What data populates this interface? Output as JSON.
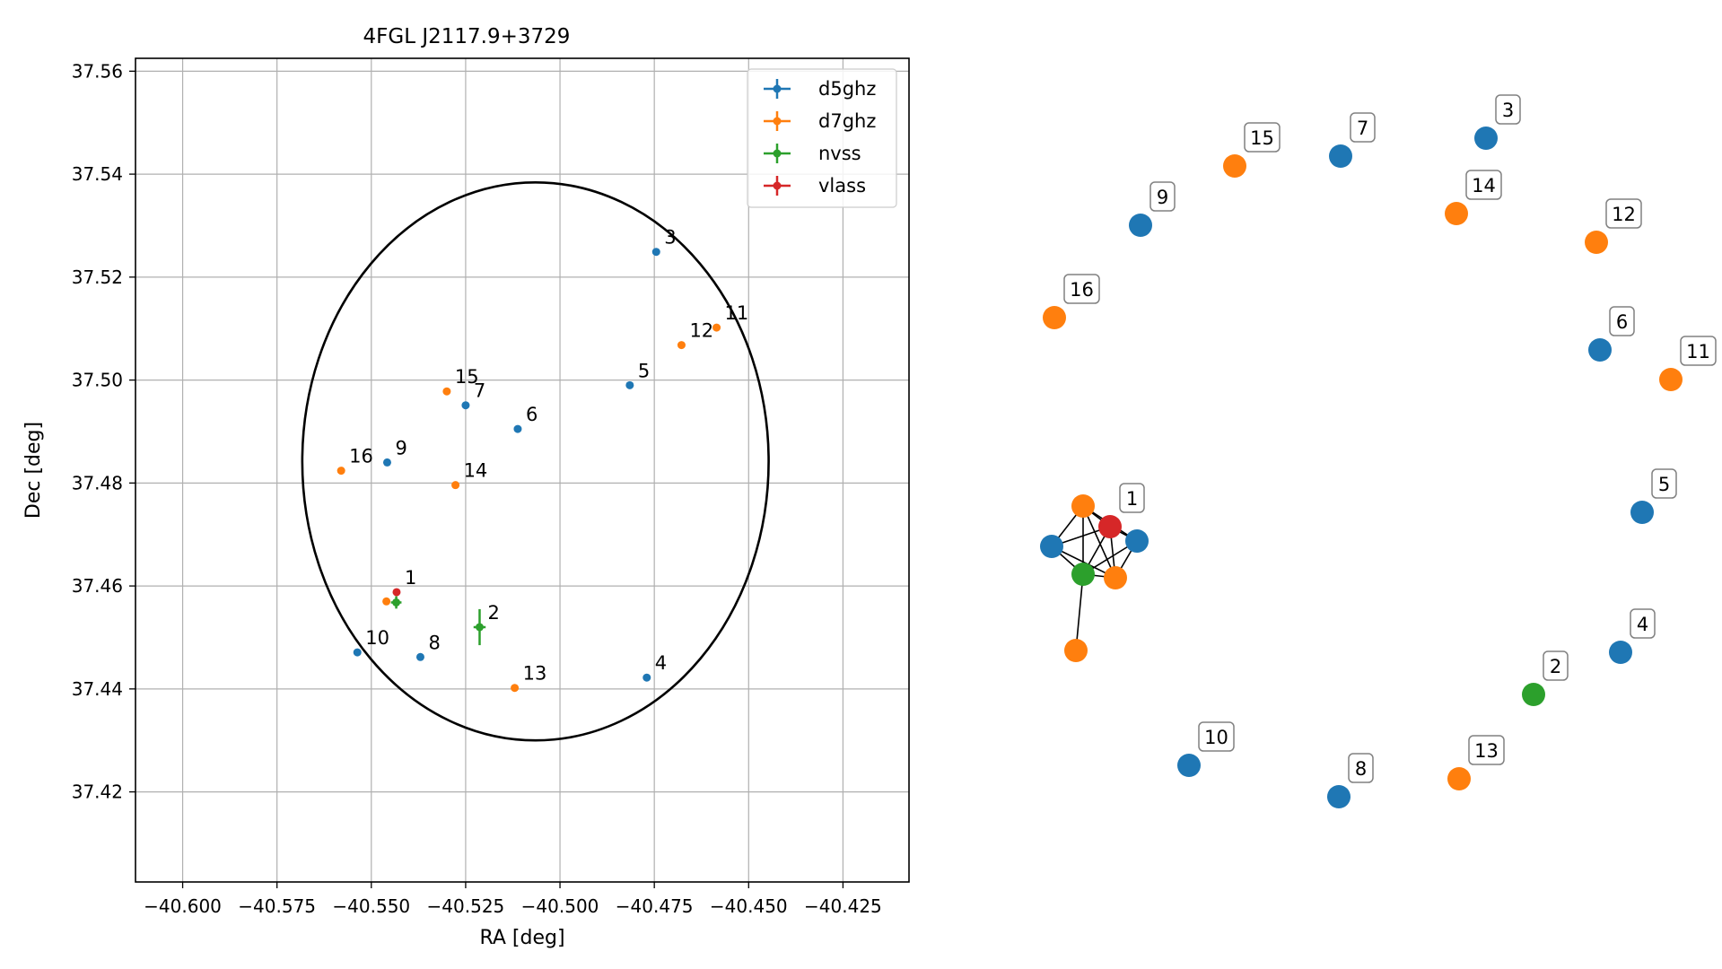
{
  "colors": {
    "d5ghz": "#1f77b4",
    "d7ghz": "#ff7f0e",
    "nvss": "#2ca02c",
    "vlass": "#d62728",
    "ellipse": "#000000",
    "grid": "#b0b0b0"
  },
  "chart_data": [
    {
      "type": "scatter",
      "title": "4FGL J2117.9+3729",
      "xlabel": "RA [deg]",
      "ylabel": "Dec [deg]",
      "xlim": [
        -40.6125,
        -40.4075
      ],
      "ylim": [
        37.4025,
        37.5625
      ],
      "xticks": [
        -40.6,
        -40.575,
        -40.55,
        -40.525,
        -40.5,
        -40.475,
        -40.45,
        -40.425
      ],
      "xtick_labels": [
        "−40.600",
        "−40.575",
        "−40.550",
        "−40.525",
        "−40.500",
        "−40.475",
        "−40.450",
        "−40.425"
      ],
      "yticks": [
        37.42,
        37.44,
        37.46,
        37.48,
        37.5,
        37.52,
        37.54,
        37.56
      ],
      "ytick_labels": [
        "37.42",
        "37.44",
        "37.46",
        "37.48",
        "37.50",
        "37.52",
        "37.54",
        "37.56"
      ],
      "grid": true,
      "legend_position": "top-right",
      "error_ellipse": {
        "center": [
          -40.5065,
          37.4842
        ],
        "semi_axis_ra": 0.0618,
        "semi_axis_dec": 0.0542
      },
      "series": [
        {
          "name": "d5ghz",
          "points": [
            {
              "id": "3",
              "x": -40.4745,
              "y": 37.5249
            },
            {
              "id": "5",
              "x": -40.4815,
              "y": 37.499
            },
            {
              "id": "6",
              "x": -40.5112,
              "y": 37.4905
            },
            {
              "id": "7",
              "x": -40.525,
              "y": 37.4951
            },
            {
              "id": "9",
              "x": -40.5458,
              "y": 37.484
            },
            {
              "id": "10",
              "x": -40.5537,
              "y": 37.4471
            },
            {
              "id": "8",
              "x": -40.537,
              "y": 37.4462
            },
            {
              "id": "4",
              "x": -40.477,
              "y": 37.4422
            }
          ]
        },
        {
          "name": "d7ghz",
          "points": [
            {
              "id": "11",
              "x": -40.4585,
              "y": 37.5102
            },
            {
              "id": "12",
              "x": -40.4678,
              "y": 37.5068
            },
            {
              "id": "15",
              "x": -40.53,
              "y": 37.4978
            },
            {
              "id": "16",
              "x": -40.558,
              "y": 37.4824
            },
            {
              "id": "14",
              "x": -40.5277,
              "y": 37.4796
            },
            {
              "id": "13",
              "x": -40.512,
              "y": 37.4402
            },
            {
              "id": "",
              "x": -40.546,
              "y": 37.457
            }
          ]
        },
        {
          "name": "nvss",
          "points": [
            {
              "id": "",
              "x": -40.5434,
              "y": 37.4568,
              "yerr": 0.0012,
              "xerr": 0.0014
            },
            {
              "id": "2",
              "x": -40.5213,
              "y": 37.452,
              "yerr": 0.0035,
              "xerr": 0.0016
            }
          ]
        },
        {
          "name": "vlass",
          "points": [
            {
              "id": "1",
              "x": -40.5433,
              "y": 37.4588
            }
          ]
        }
      ],
      "point_labels": [
        "3",
        "11",
        "12",
        "15",
        "7",
        "5",
        "6",
        "16",
        "9",
        "14",
        "1",
        "2",
        "10",
        "8",
        "13",
        "4"
      ]
    },
    {
      "type": "network",
      "nodes": [
        {
          "label": "",
          "series": "d5ghz"
        },
        {
          "label": "",
          "series": "d7ghz"
        },
        {
          "label": "",
          "series": "d5ghz"
        },
        {
          "label": "1",
          "series": "vlass"
        },
        {
          "label": "",
          "series": "nvss"
        },
        {
          "label": "",
          "series": "d7ghz"
        },
        {
          "label": "",
          "series": "d7ghz"
        },
        {
          "label": "2",
          "series": "nvss"
        },
        {
          "label": "3",
          "series": "d5ghz"
        },
        {
          "label": "4",
          "series": "d5ghz"
        },
        {
          "label": "5",
          "series": "d5ghz"
        },
        {
          "label": "6",
          "series": "d5ghz"
        },
        {
          "label": "7",
          "series": "d5ghz"
        },
        {
          "label": "8",
          "series": "d5ghz"
        },
        {
          "label": "9",
          "series": "d5ghz"
        },
        {
          "label": "10",
          "series": "d5ghz"
        },
        {
          "label": "11",
          "series": "d7ghz"
        },
        {
          "label": "12",
          "series": "d7ghz"
        },
        {
          "label": "13",
          "series": "d7ghz"
        },
        {
          "label": "14",
          "series": "d7ghz"
        },
        {
          "label": "15",
          "series": "d7ghz"
        },
        {
          "label": "16",
          "series": "d7ghz"
        }
      ],
      "edges": [
        [
          0,
          1
        ],
        [
          0,
          3
        ],
        [
          0,
          4
        ],
        [
          0,
          5
        ],
        [
          1,
          3
        ],
        [
          1,
          4
        ],
        [
          1,
          5
        ],
        [
          3,
          2
        ],
        [
          3,
          4
        ],
        [
          3,
          5
        ],
        [
          2,
          4
        ],
        [
          2,
          5
        ],
        [
          4,
          5
        ],
        [
          4,
          6
        ],
        [
          2,
          1
        ]
      ]
    }
  ]
}
